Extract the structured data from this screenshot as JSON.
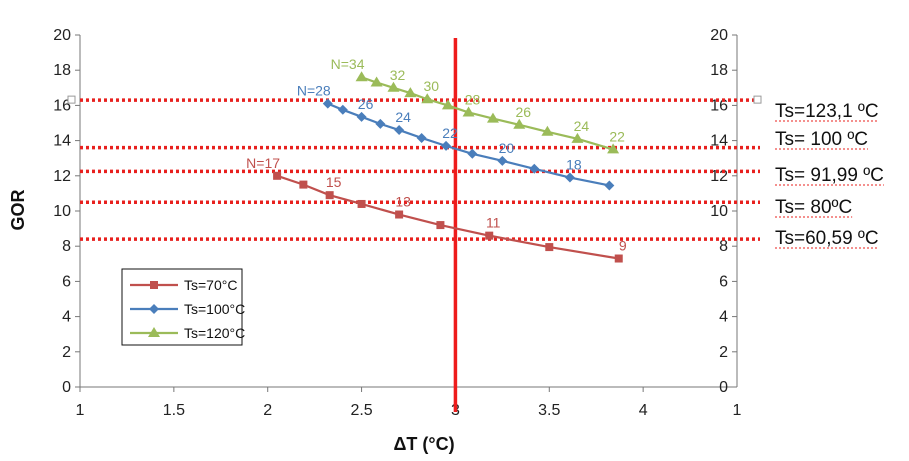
{
  "chart_data": {
    "type": "line",
    "xlabel": "ΔT (°C)",
    "ylabel": "GOR",
    "xlim": [
      1,
      4.5
    ],
    "ylim": [
      0,
      20
    ],
    "x_ticks": [
      "1",
      "1.5",
      "2",
      "2.5",
      "3",
      "3.5",
      "4"
    ],
    "y_ticks": [
      "0",
      "2",
      "4",
      "6",
      "8",
      "10",
      "12",
      "14",
      "16",
      "18",
      "20"
    ],
    "secondary_x_tick": "1",
    "grid": false,
    "legend_position": "bottom-left",
    "vertical_line": {
      "x": 3,
      "color": "#ee1c1c"
    },
    "series": [
      {
        "name": "Ts=70°C",
        "color": "#c0504d",
        "marker": "square",
        "x": [
          2.05,
          2.19,
          2.33,
          2.5,
          2.7,
          2.92,
          3.18,
          3.5,
          3.87
        ],
        "y": [
          12.0,
          11.5,
          10.9,
          10.4,
          9.8,
          9.2,
          8.6,
          7.95,
          7.3
        ]
      },
      {
        "name": "Ts=100°C",
        "color": "#4a7ebb",
        "marker": "diamond",
        "x": [
          2.32,
          2.4,
          2.5,
          2.6,
          2.7,
          2.82,
          2.95,
          3.09,
          3.25,
          3.42,
          3.61,
          3.82
        ],
        "y": [
          16.1,
          15.75,
          15.35,
          14.95,
          14.6,
          14.15,
          13.7,
          13.25,
          12.85,
          12.4,
          11.9,
          11.45
        ]
      },
      {
        "name": "Ts=120°C",
        "color": "#9bbb59",
        "marker": "triangle",
        "x": [
          2.5,
          2.58,
          2.67,
          2.76,
          2.85,
          2.96,
          3.07,
          3.2,
          3.34,
          3.49,
          3.65,
          3.84
        ],
        "y": [
          17.6,
          17.3,
          17.0,
          16.7,
          16.35,
          16.0,
          15.6,
          15.25,
          14.9,
          14.5,
          14.1,
          13.5
        ]
      }
    ],
    "point_labels": [
      {
        "text": "N=17",
        "x": 2.05,
        "y": 12.0,
        "series": 0
      },
      {
        "text": "15",
        "x": 2.33,
        "y": 10.9,
        "series": 0
      },
      {
        "text": "13",
        "x": 2.7,
        "y": 9.8,
        "series": 0
      },
      {
        "text": "11",
        "x": 3.18,
        "y": 8.6,
        "series": 0
      },
      {
        "text": "9",
        "x": 3.87,
        "y": 7.3,
        "series": 0
      },
      {
        "text": "N=28",
        "x": 2.32,
        "y": 16.1,
        "series": 1
      },
      {
        "text": "26",
        "x": 2.5,
        "y": 15.35,
        "series": 1
      },
      {
        "text": "24",
        "x": 2.7,
        "y": 14.6,
        "series": 1
      },
      {
        "text": "22",
        "x": 2.95,
        "y": 13.7,
        "series": 1
      },
      {
        "text": "20",
        "x": 3.25,
        "y": 12.85,
        "series": 1
      },
      {
        "text": "18",
        "x": 3.61,
        "y": 11.9,
        "series": 1
      },
      {
        "text": "N=34",
        "x": 2.5,
        "y": 17.6,
        "series": 2
      },
      {
        "text": "32",
        "x": 2.67,
        "y": 17.0,
        "series": 2
      },
      {
        "text": "30",
        "x": 2.85,
        "y": 16.35,
        "series": 2
      },
      {
        "text": "28",
        "x": 3.07,
        "y": 15.6,
        "series": 2
      },
      {
        "text": "26",
        "x": 3.34,
        "y": 14.9,
        "series": 2
      },
      {
        "text": "24",
        "x": 3.65,
        "y": 14.1,
        "series": 2
      },
      {
        "text": "22",
        "x": 3.84,
        "y": 13.5,
        "series": 2
      }
    ],
    "reference_lines": [
      {
        "label": "Ts=123,1 ºC",
        "y": 16.3
      },
      {
        "label": "Ts= 100 ºC",
        "y": 13.6
      },
      {
        "label": "Ts= 91,99 ºC",
        "y": 12.25
      },
      {
        "label": "Ts= 80ºC",
        "y": 10.5
      },
      {
        "label": "Ts=60,59 ºC",
        "y": 8.4
      }
    ],
    "reference_line_color": "#e8201e"
  }
}
